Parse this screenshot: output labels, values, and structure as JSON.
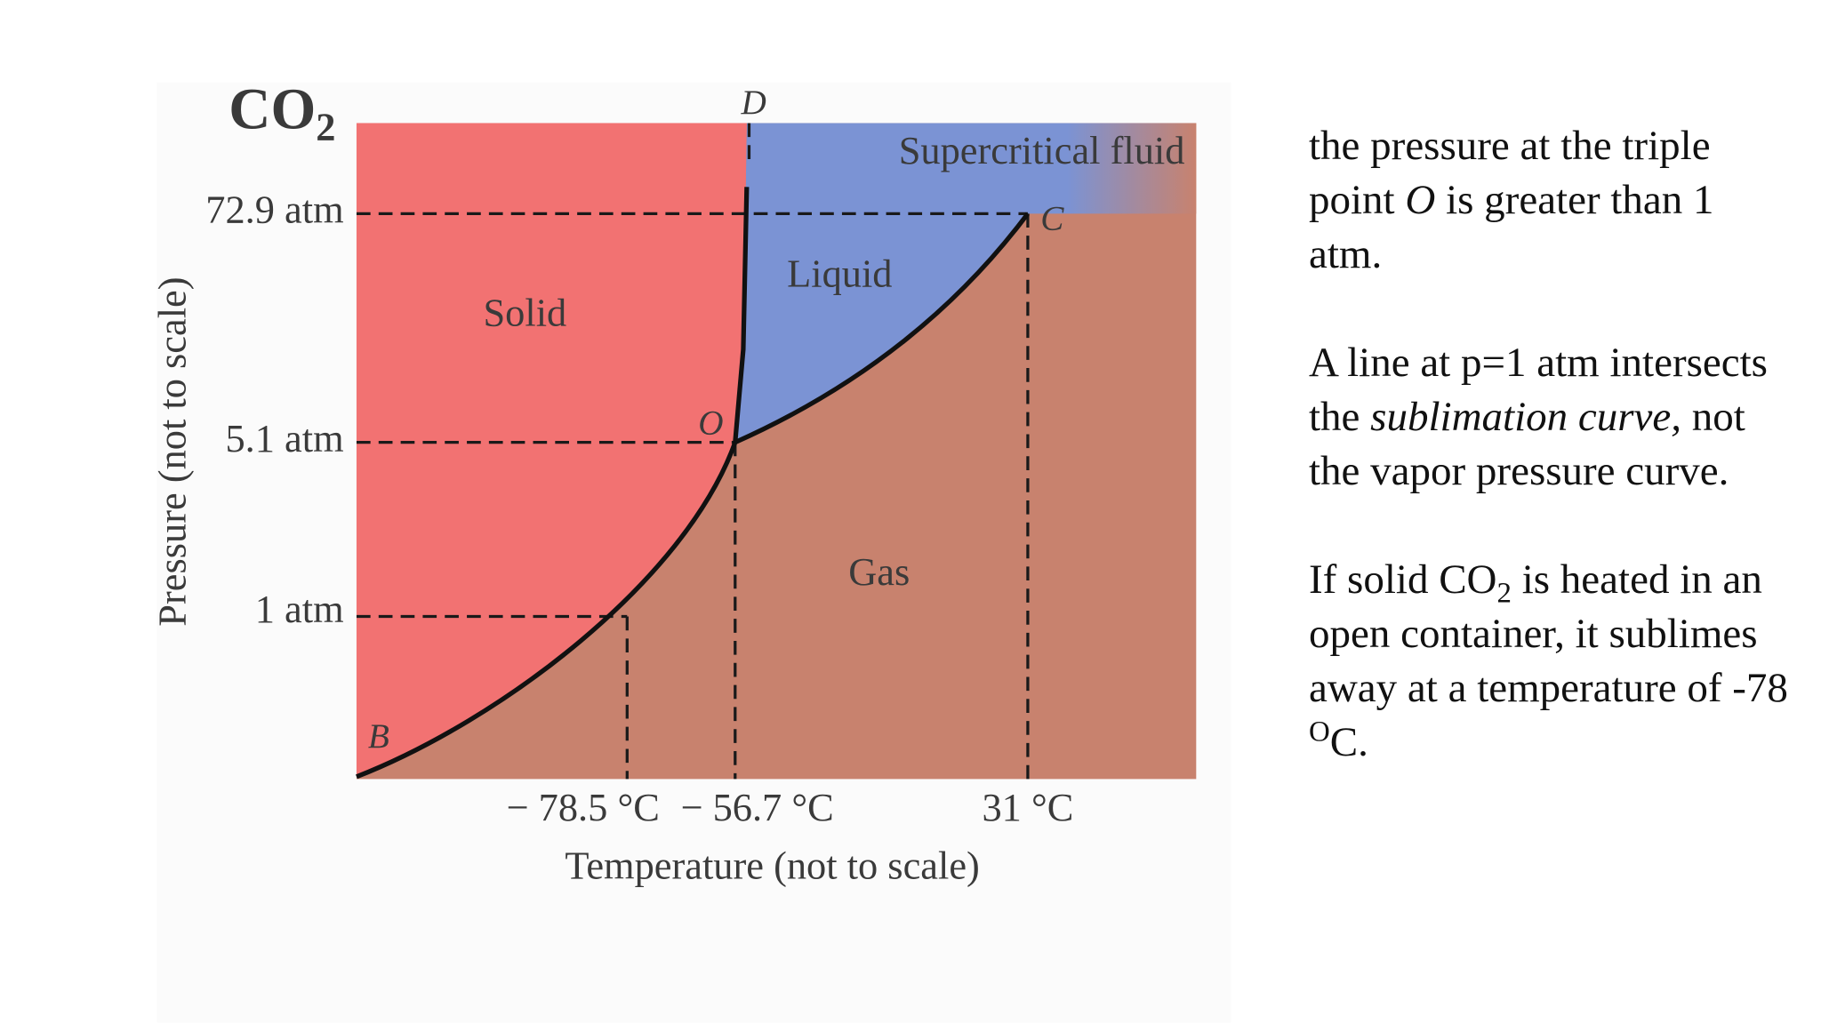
{
  "diagram": {
    "title": [
      "CO",
      "2"
    ],
    "pressure_labels": [
      "72.9 atm",
      "5.1 atm",
      "1 atm"
    ],
    "temperature_labels": [
      "− 78.5 °C",
      "− 56.7 °C",
      "31 °C"
    ],
    "x_axis_label": "Temperature (not to scale)",
    "y_axis_label": "Pressure (not to scale)",
    "regions": [
      "Solid",
      "Liquid",
      "Gas",
      "Supercritical fluid"
    ],
    "points": [
      "D",
      "C",
      "O",
      "B"
    ]
  },
  "notes": [
    [
      "the pressure at the triple point ",
      "O",
      " is greater than 1 atm."
    ],
    [
      "A line at p=1 atm intersects the ",
      "sublimation curve,",
      " not the vapor pressure curve."
    ],
    [
      "If solid CO",
      "2",
      " is heated in an open container, it sublimes away at a temperature of -78 ",
      "O",
      "C."
    ]
  ]
}
